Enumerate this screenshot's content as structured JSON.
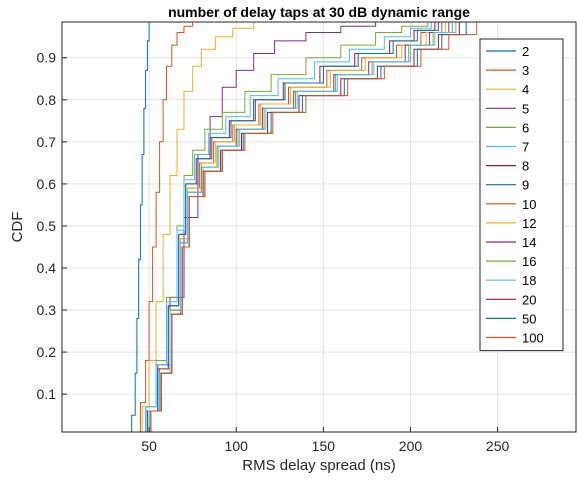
{
  "chart_data": {
    "type": "line",
    "title": "number of delay taps at 30 dB dynamic range",
    "xlabel": "RMS delay spread (ns)",
    "ylabel": "CDF",
    "xlim": [
      0,
      295
    ],
    "ylim": [
      0.01,
      0.985
    ],
    "xticks": [
      50,
      100,
      150,
      200,
      250
    ],
    "yticks": [
      0.1,
      0.2,
      0.3,
      0.4,
      0.5,
      0.6,
      0.7,
      0.8,
      0.9
    ],
    "grid": true,
    "legend_position": "top-right",
    "series": [
      {
        "name": "2",
        "color": "#0072BD",
        "x": [
          38,
          40,
          42,
          43,
          44,
          45,
          46,
          47,
          48,
          49,
          50
        ],
        "y": [
          0.01,
          0.05,
          0.15,
          0.28,
          0.42,
          0.55,
          0.67,
          0.78,
          0.87,
          0.94,
          0.985
        ]
      },
      {
        "name": "3",
        "color": "#D95319",
        "x": [
          42,
          45,
          48,
          50,
          52,
          54,
          56,
          58,
          60,
          63,
          66,
          70,
          75
        ],
        "y": [
          0.01,
          0.08,
          0.18,
          0.32,
          0.45,
          0.58,
          0.7,
          0.8,
          0.88,
          0.93,
          0.96,
          0.975,
          0.985
        ]
      },
      {
        "name": "4",
        "color": "#EDB120",
        "x": [
          42,
          46,
          50,
          54,
          58,
          62,
          66,
          70,
          75,
          80,
          88,
          98,
          110
        ],
        "y": [
          0.01,
          0.07,
          0.18,
          0.32,
          0.48,
          0.62,
          0.73,
          0.82,
          0.88,
          0.92,
          0.95,
          0.97,
          0.985
        ]
      },
      {
        "name": "5",
        "color": "#7E2F8E",
        "x": [
          42,
          48,
          55,
          62,
          70,
          78,
          85,
          92,
          100,
          110,
          122,
          140,
          160,
          180
        ],
        "y": [
          0.01,
          0.06,
          0.17,
          0.33,
          0.52,
          0.67,
          0.76,
          0.83,
          0.87,
          0.91,
          0.94,
          0.96,
          0.975,
          0.985
        ]
      },
      {
        "name": "6",
        "color": "#77AC30",
        "x": [
          42,
          48,
          54,
          60,
          66,
          70,
          75,
          82,
          92,
          105,
          120,
          140,
          160,
          180,
          195,
          210
        ],
        "y": [
          0.01,
          0.07,
          0.18,
          0.33,
          0.5,
          0.62,
          0.68,
          0.73,
          0.77,
          0.82,
          0.86,
          0.9,
          0.93,
          0.96,
          0.975,
          0.985
        ]
      },
      {
        "name": "7",
        "color": "#4DBEEE",
        "x": [
          42,
          48,
          54,
          60,
          66,
          70,
          76,
          84,
          94,
          108,
          124,
          145,
          165,
          185,
          200,
          212
        ],
        "y": [
          0.01,
          0.07,
          0.17,
          0.32,
          0.49,
          0.61,
          0.67,
          0.72,
          0.76,
          0.81,
          0.85,
          0.89,
          0.92,
          0.95,
          0.97,
          0.985
        ]
      },
      {
        "name": "8",
        "color": "#A2142F",
        "x": [
          43,
          49,
          55,
          61,
          67,
          71,
          77,
          85,
          96,
          110,
          127,
          148,
          168,
          188,
          202,
          214
        ],
        "y": [
          0.01,
          0.06,
          0.16,
          0.31,
          0.48,
          0.6,
          0.66,
          0.71,
          0.75,
          0.8,
          0.84,
          0.88,
          0.91,
          0.94,
          0.965,
          0.985
        ]
      },
      {
        "name": "9",
        "color": "#0072BD",
        "x": [
          43,
          49,
          55,
          61,
          67,
          71,
          78,
          86,
          97,
          111,
          128,
          150,
          170,
          190,
          204,
          216
        ],
        "y": [
          0.01,
          0.06,
          0.16,
          0.31,
          0.48,
          0.6,
          0.66,
          0.71,
          0.75,
          0.8,
          0.84,
          0.88,
          0.91,
          0.94,
          0.965,
          0.985
        ]
      },
      {
        "name": "10",
        "color": "#D95319",
        "x": [
          44,
          50,
          56,
          62,
          68,
          72,
          79,
          87,
          98,
          113,
          130,
          152,
          172,
          192,
          206,
          218
        ],
        "y": [
          0.01,
          0.06,
          0.16,
          0.3,
          0.47,
          0.59,
          0.65,
          0.7,
          0.74,
          0.79,
          0.83,
          0.87,
          0.9,
          0.93,
          0.96,
          0.985
        ]
      },
      {
        "name": "12",
        "color": "#EDB120",
        "x": [
          44,
          50,
          56,
          62,
          68,
          72,
          80,
          88,
          99,
          114,
          131,
          154,
          174,
          195,
          209,
          220
        ],
        "y": [
          0.01,
          0.06,
          0.15,
          0.3,
          0.47,
          0.59,
          0.65,
          0.7,
          0.74,
          0.79,
          0.83,
          0.87,
          0.9,
          0.93,
          0.96,
          0.985
        ]
      },
      {
        "name": "14",
        "color": "#7E2F8E",
        "x": [
          44,
          50,
          56,
          62,
          68,
          72,
          80,
          89,
          100,
          115,
          133,
          156,
          176,
          197,
          211,
          222
        ],
        "y": [
          0.01,
          0.06,
          0.15,
          0.3,
          0.46,
          0.58,
          0.64,
          0.69,
          0.73,
          0.78,
          0.82,
          0.86,
          0.89,
          0.93,
          0.96,
          0.985
        ]
      },
      {
        "name": "16",
        "color": "#77AC30",
        "x": [
          44,
          50,
          56,
          62,
          68,
          72,
          80,
          89,
          101,
          116,
          134,
          157,
          178,
          199,
          213,
          224
        ],
        "y": [
          0.01,
          0.06,
          0.15,
          0.3,
          0.46,
          0.58,
          0.64,
          0.69,
          0.73,
          0.78,
          0.82,
          0.86,
          0.89,
          0.93,
          0.96,
          0.985
        ]
      },
      {
        "name": "18",
        "color": "#4DBEEE",
        "x": [
          44,
          50,
          56,
          62,
          68,
          72,
          81,
          90,
          102,
          117,
          135,
          158,
          179,
          200,
          214,
          226
        ],
        "y": [
          0.01,
          0.06,
          0.15,
          0.29,
          0.46,
          0.58,
          0.64,
          0.69,
          0.73,
          0.78,
          0.82,
          0.86,
          0.89,
          0.93,
          0.96,
          0.985
        ]
      },
      {
        "name": "20",
        "color": "#A2142F",
        "x": [
          45,
          51,
          57,
          63,
          69,
          73,
          81,
          91,
          103,
          118,
          136,
          160,
          181,
          202,
          216,
          228
        ],
        "y": [
          0.01,
          0.06,
          0.15,
          0.29,
          0.45,
          0.57,
          0.63,
          0.68,
          0.72,
          0.77,
          0.81,
          0.85,
          0.88,
          0.92,
          0.955,
          0.985
        ]
      },
      {
        "name": "50",
        "color": "#0072BD",
        "x": [
          45,
          51,
          57,
          63,
          69,
          73,
          82,
          92,
          104,
          120,
          138,
          162,
          183,
          204,
          218,
          232
        ],
        "y": [
          0.01,
          0.06,
          0.15,
          0.29,
          0.45,
          0.57,
          0.63,
          0.68,
          0.72,
          0.77,
          0.81,
          0.85,
          0.88,
          0.92,
          0.955,
          0.985
        ]
      },
      {
        "name": "100",
        "color": "#D95319",
        "x": [
          45,
          51,
          57,
          63,
          69,
          73,
          82,
          92,
          105,
          121,
          140,
          164,
          185,
          206,
          222,
          238
        ],
        "y": [
          0.01,
          0.06,
          0.15,
          0.29,
          0.45,
          0.57,
          0.63,
          0.68,
          0.72,
          0.77,
          0.81,
          0.85,
          0.88,
          0.92,
          0.955,
          0.985
        ]
      }
    ]
  }
}
